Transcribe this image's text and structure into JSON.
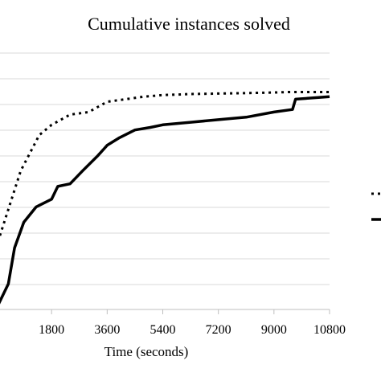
{
  "chart_data": {
    "type": "line",
    "title": "Cumulative instances solved",
    "xlabel": "Time (seconds)",
    "ylabel": "",
    "x_ticks": [
      1800,
      3600,
      5400,
      7200,
      9000,
      10800
    ],
    "xlim": [
      0,
      10800
    ],
    "grid": true,
    "legend": "right",
    "series": [
      {
        "style": "dotted",
        "color": "#000000",
        "points": [
          [
            0,
            0.12
          ],
          [
            800,
            0.27
          ],
          [
            1400,
            0.34
          ],
          [
            1800,
            0.36
          ],
          [
            2400,
            0.38
          ],
          [
            3000,
            0.385
          ],
          [
            3300,
            0.395
          ],
          [
            3600,
            0.405
          ],
          [
            4200,
            0.41
          ],
          [
            4800,
            0.415
          ],
          [
            5400,
            0.418
          ],
          [
            6300,
            0.42
          ],
          [
            7200,
            0.421
          ],
          [
            8100,
            0.422
          ],
          [
            9000,
            0.423
          ],
          [
            9500,
            0.424
          ],
          [
            10800,
            0.424
          ]
        ]
      },
      {
        "style": "solid",
        "color": "#000000",
        "points": [
          [
            0,
            0.0
          ],
          [
            400,
            0.05
          ],
          [
            600,
            0.12
          ],
          [
            900,
            0.17
          ],
          [
            1300,
            0.2
          ],
          [
            1800,
            0.215
          ],
          [
            2000,
            0.24
          ],
          [
            2400,
            0.245
          ],
          [
            2800,
            0.27
          ],
          [
            3300,
            0.3
          ],
          [
            3600,
            0.32
          ],
          [
            4000,
            0.335
          ],
          [
            4500,
            0.35
          ],
          [
            5000,
            0.355
          ],
          [
            5400,
            0.36
          ],
          [
            6300,
            0.365
          ],
          [
            7200,
            0.37
          ],
          [
            8100,
            0.375
          ],
          [
            9000,
            0.385
          ],
          [
            9600,
            0.39
          ],
          [
            9700,
            0.41
          ],
          [
            10800,
            0.415
          ]
        ]
      }
    ]
  }
}
